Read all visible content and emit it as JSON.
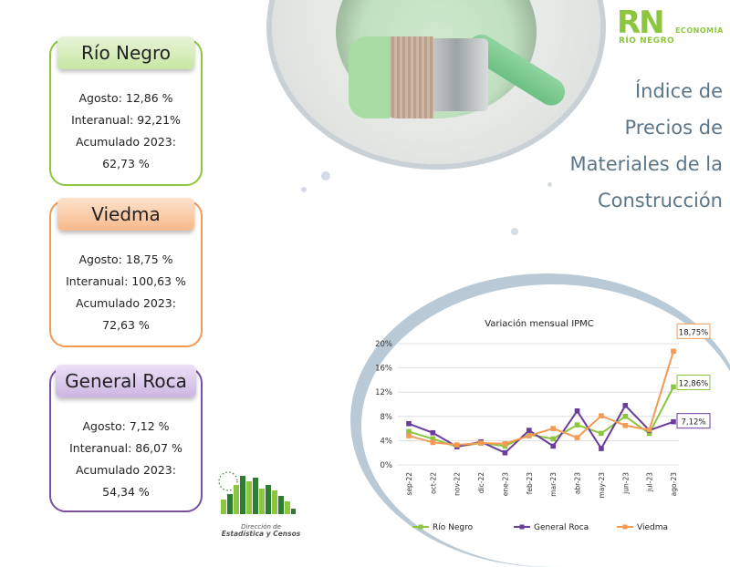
{
  "logo": {
    "brand": "RN",
    "sub": "RÍO NEGRO",
    "section": "ECONOMÍA"
  },
  "title": {
    "line1": "Índice de",
    "line2": "Precios de",
    "line3": "Materiales de la",
    "line4": "Construcción"
  },
  "cards": {
    "rio_negro": {
      "name": "Río Negro",
      "agosto": "Agosto: 12,86 %",
      "interanual": "Interanual: 92,21%",
      "acumulado_label": "Acumulado 2023:",
      "acumulado_value": "62,73 %"
    },
    "viedma": {
      "name": "Viedma",
      "agosto": "Agosto: 18,75 %",
      "interanual": "Interanual: 100,63 %",
      "acumulado_label": "Acumulado 2023:",
      "acumulado_value": "72,63 %"
    },
    "general_roca": {
      "name": "General Roca",
      "agosto": "Agosto: 7,12 %",
      "interanual": "Interanual: 86,07 %",
      "acumulado_label": "Acumulado 2023:",
      "acumulado_value": "54,34 %"
    }
  },
  "footer_logo": {
    "line1": "Dirección de",
    "line2": "Estadística y Censos"
  },
  "chart_data": {
    "type": "line",
    "title": "Variación mensual IPMC",
    "categories": [
      "sep-22",
      "oct-22",
      "nov-22",
      "dic-22",
      "ene-23",
      "feb-23",
      "mar-23",
      "abr-23",
      "may-23",
      "jun-23",
      "jul-23",
      "ago-23"
    ],
    "yticks": [
      "0%",
      "4%",
      "8%",
      "12%",
      "16%",
      "20%"
    ],
    "ylim": [
      0,
      20
    ],
    "legend_position": "bottom",
    "grid": true,
    "series": [
      {
        "name": "Río Negro",
        "color": "#8cc63f",
        "values": [
          5.5,
          4.3,
          3.0,
          3.6,
          3.1,
          5.0,
          4.3,
          6.6,
          5.2,
          8.0,
          5.2,
          12.86
        ],
        "end_label": "12,86%"
      },
      {
        "name": "General Roca",
        "color": "#6a3d9a",
        "values": [
          6.8,
          5.3,
          3.0,
          3.8,
          2.0,
          5.7,
          3.1,
          8.9,
          2.7,
          9.8,
          5.7,
          7.12
        ],
        "end_label": "7,12%"
      },
      {
        "name": "Viedma",
        "color": "#f39a54",
        "values": [
          4.8,
          3.7,
          3.3,
          3.6,
          3.5,
          4.8,
          6.0,
          4.5,
          8.1,
          6.5,
          5.8,
          18.75
        ],
        "end_label": "18,75%"
      }
    ]
  }
}
